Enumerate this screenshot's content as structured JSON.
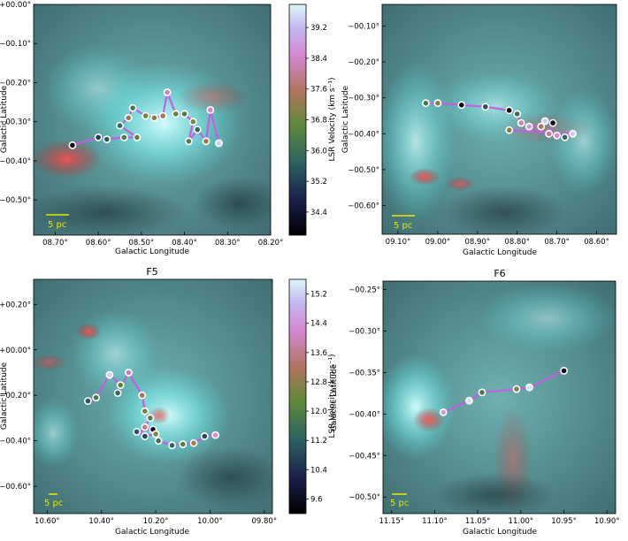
{
  "figure": {
    "colorbar_label": "LSR Velocity (km s⁻¹)"
  },
  "chart_data": [
    {
      "type": "scatter",
      "title": "",
      "xlabel": "Galactic Longitude",
      "ylabel": "Galactic Latitude",
      "xlim": [
        8.75,
        8.2
      ],
      "ylim": [
        -0.59,
        0.0
      ],
      "xticks": [
        8.7,
        8.6,
        8.5,
        8.4,
        8.3,
        8.2
      ],
      "xtick_labels": [
        "08.70°",
        "08.60°",
        "08.50°",
        "08.40°",
        "08.30°",
        "08.20°"
      ],
      "yticks": [
        0.0,
        -0.1,
        -0.2,
        -0.3,
        -0.4,
        -0.5
      ],
      "ytick_labels": [
        "+00.00°",
        "−00.10°",
        "−00.20°",
        "−00.30°",
        "−00.40°",
        "−00.50°"
      ],
      "scalebar_label": "5 pc",
      "clim": [
        33.8,
        39.8
      ],
      "colorbar_ticks": [
        34.4,
        35.2,
        36.0,
        36.8,
        37.6,
        38.4,
        39.2
      ],
      "colorbar_tick_labels": [
        "34.4",
        "35.2",
        "36.0",
        "36.8",
        "37.6",
        "38.4",
        "39.2"
      ],
      "points": [
        {
          "l": 8.66,
          "b": -0.36,
          "v": 34.0
        },
        {
          "l": 8.6,
          "b": -0.34,
          "v": 35.2
        },
        {
          "l": 8.58,
          "b": -0.345,
          "v": 35.6
        },
        {
          "l": 8.54,
          "b": -0.34,
          "v": 36.2
        },
        {
          "l": 8.51,
          "b": -0.34,
          "v": 36.5
        },
        {
          "l": 8.55,
          "b": -0.31,
          "v": 35.8
        },
        {
          "l": 8.53,
          "b": -0.29,
          "v": 37.2
        },
        {
          "l": 8.52,
          "b": -0.265,
          "v": 36.2
        },
        {
          "l": 8.49,
          "b": -0.285,
          "v": 36.8
        },
        {
          "l": 8.47,
          "b": -0.29,
          "v": 37.0
        },
        {
          "l": 8.45,
          "b": -0.285,
          "v": 37.4
        },
        {
          "l": 8.44,
          "b": -0.225,
          "v": 38.2
        },
        {
          "l": 8.42,
          "b": -0.28,
          "v": 36.6
        },
        {
          "l": 8.4,
          "b": -0.28,
          "v": 36.3
        },
        {
          "l": 8.38,
          "b": -0.3,
          "v": 37.0
        },
        {
          "l": 8.39,
          "b": -0.35,
          "v": 36.4
        },
        {
          "l": 8.37,
          "b": -0.32,
          "v": 35.8
        },
        {
          "l": 8.35,
          "b": -0.35,
          "v": 37.2
        },
        {
          "l": 8.34,
          "b": -0.27,
          "v": 38.4
        },
        {
          "l": 8.32,
          "b": -0.355,
          "v": 39.4
        }
      ]
    },
    {
      "type": "scatter",
      "title": "",
      "xlabel": "Galactic Longitude",
      "ylabel": "Galactic Latitude",
      "xlim": [
        9.14,
        8.55
      ],
      "ylim": [
        -0.68,
        -0.04
      ],
      "xticks": [
        9.1,
        9.0,
        8.9,
        8.8,
        8.7,
        8.6
      ],
      "xtick_labels": [
        "09.10°",
        "09.00°",
        "08.90°",
        "08.80°",
        "08.70°",
        "08.60°"
      ],
      "yticks": [
        -0.1,
        -0.2,
        -0.3,
        -0.4,
        -0.5,
        -0.6
      ],
      "ytick_labels": [
        "−00.10°",
        "−00.20°",
        "−00.30°",
        "−00.40°",
        "−00.50°",
        "−00.60°"
      ],
      "scalebar_label": "5 pc",
      "clim": [
        33.8,
        39.8
      ],
      "points": [
        {
          "l": 9.03,
          "b": -0.315,
          "v": 36.2
        },
        {
          "l": 9.0,
          "b": -0.315,
          "v": 37.0
        },
        {
          "l": 8.94,
          "b": -0.32,
          "v": 33.9
        },
        {
          "l": 8.88,
          "b": -0.325,
          "v": 35.4
        },
        {
          "l": 8.82,
          "b": -0.335,
          "v": 33.9
        },
        {
          "l": 8.8,
          "b": -0.345,
          "v": 36.0
        },
        {
          "l": 8.79,
          "b": -0.37,
          "v": 38.2
        },
        {
          "l": 8.77,
          "b": -0.38,
          "v": 38.8
        },
        {
          "l": 8.74,
          "b": -0.38,
          "v": 37.6
        },
        {
          "l": 8.73,
          "b": -0.365,
          "v": 39.4
        },
        {
          "l": 8.71,
          "b": -0.37,
          "v": 34.0
        },
        {
          "l": 8.72,
          "b": -0.4,
          "v": 38.0
        },
        {
          "l": 8.7,
          "b": -0.405,
          "v": 38.6
        },
        {
          "l": 8.68,
          "b": -0.41,
          "v": 35.8
        },
        {
          "l": 8.66,
          "b": -0.4,
          "v": 39.4
        },
        {
          "l": 8.82,
          "b": -0.39,
          "v": 37.0
        }
      ]
    },
    {
      "type": "scatter",
      "title": "F5",
      "xlabel": "Galactic Longitude",
      "ylabel": "Galactic Latitude",
      "xlim": [
        10.65,
        9.77
      ],
      "ylim": [
        -0.72,
        0.31
      ],
      "xticks": [
        10.6,
        10.4,
        10.2,
        10.0,
        9.8
      ],
      "xtick_labels": [
        "10.60°",
        "10.40°",
        "10.20°",
        "10.00°",
        "09.80°"
      ],
      "yticks": [
        0.2,
        0.0,
        -0.2,
        -0.4,
        -0.6
      ],
      "ytick_labels": [
        "+00.20°",
        "+00.00°",
        "−00.20°",
        "−00.40°",
        "−00.60°"
      ],
      "scalebar_label": "5 pc",
      "clim": [
        9.2,
        15.6
      ],
      "colorbar_ticks": [
        9.6,
        10.4,
        11.2,
        12.0,
        12.8,
        13.6,
        14.4,
        15.2
      ],
      "colorbar_tick_labels": [
        "9.6",
        "10.4",
        "11.2",
        "12.0",
        "12.8",
        "13.6",
        "14.4",
        "15.2"
      ],
      "points": [
        {
          "l": 10.45,
          "b": -0.225,
          "v": 11.0
        },
        {
          "l": 10.42,
          "b": -0.21,
          "v": 11.8
        },
        {
          "l": 10.37,
          "b": -0.11,
          "v": 15.2
        },
        {
          "l": 10.33,
          "b": -0.155,
          "v": 12.2
        },
        {
          "l": 10.34,
          "b": -0.19,
          "v": 11.4
        },
        {
          "l": 10.3,
          "b": -0.1,
          "v": 13.8
        },
        {
          "l": 10.25,
          "b": -0.2,
          "v": 13.0
        },
        {
          "l": 10.24,
          "b": -0.27,
          "v": 12.4
        },
        {
          "l": 10.22,
          "b": -0.3,
          "v": 12.0
        },
        {
          "l": 10.24,
          "b": -0.34,
          "v": 13.6
        },
        {
          "l": 10.21,
          "b": -0.35,
          "v": 9.6
        },
        {
          "l": 10.27,
          "b": -0.36,
          "v": 11.0
        },
        {
          "l": 10.24,
          "b": -0.38,
          "v": 10.8
        },
        {
          "l": 10.2,
          "b": -0.37,
          "v": 12.6
        },
        {
          "l": 10.19,
          "b": -0.4,
          "v": 11.6
        },
        {
          "l": 10.14,
          "b": -0.42,
          "v": 11.2
        },
        {
          "l": 10.1,
          "b": -0.415,
          "v": 12.0
        },
        {
          "l": 10.06,
          "b": -0.41,
          "v": 13.0
        },
        {
          "l": 10.02,
          "b": -0.38,
          "v": 10.8
        },
        {
          "l": 9.98,
          "b": -0.375,
          "v": 14.2
        }
      ]
    },
    {
      "type": "scatter",
      "title": "F6",
      "xlabel": "Galactic Longitude",
      "ylabel": "Galactic Latitude",
      "xlim": [
        11.16,
        10.89
      ],
      "ylim": [
        -0.52,
        -0.24
      ],
      "xticks": [
        11.15,
        11.1,
        11.05,
        11.0,
        10.95,
        10.9
      ],
      "xtick_labels": [
        "11.15°",
        "11.10°",
        "11.05°",
        "11.00°",
        "10.95°",
        "10.90°"
      ],
      "yticks": [
        -0.25,
        -0.3,
        -0.35,
        -0.4,
        -0.45,
        -0.5
      ],
      "ytick_labels": [
        "−00.25°",
        "−00.30°",
        "−00.35°",
        "−00.40°",
        "−00.45°",
        "−00.50°"
      ],
      "scalebar_label": "5 pc",
      "clim": [
        9.2,
        15.6
      ],
      "points": [
        {
          "l": 11.09,
          "b": -0.398,
          "v": 14.6
        },
        {
          "l": 11.06,
          "b": -0.384,
          "v": 15.4
        },
        {
          "l": 11.045,
          "b": -0.374,
          "v": 11.8
        },
        {
          "l": 11.005,
          "b": -0.37,
          "v": 12.6
        },
        {
          "l": 10.99,
          "b": -0.368,
          "v": 15.4
        },
        {
          "l": 10.95,
          "b": -0.348,
          "v": 9.6
        }
      ]
    }
  ]
}
